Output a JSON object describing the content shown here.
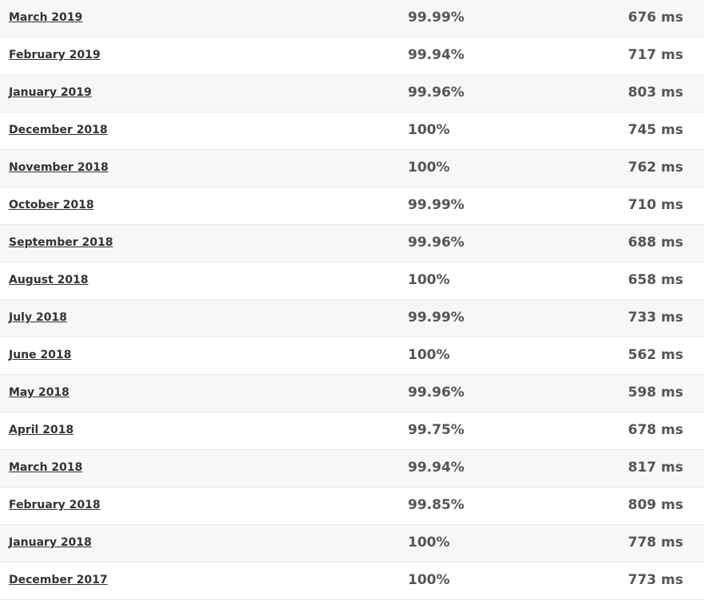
{
  "rows": [
    {
      "month": "March 2019",
      "uptime": "99.99%",
      "response": "676 ms"
    },
    {
      "month": "February 2019",
      "uptime": "99.94%",
      "response": "717 ms"
    },
    {
      "month": "January 2019",
      "uptime": "99.96%",
      "response": "803 ms"
    },
    {
      "month": "December 2018",
      "uptime": "100%",
      "response": "745 ms"
    },
    {
      "month": "November 2018",
      "uptime": "100%",
      "response": "762 ms"
    },
    {
      "month": "October 2018",
      "uptime": "99.99%",
      "response": "710 ms"
    },
    {
      "month": "September 2018",
      "uptime": "99.96%",
      "response": "688 ms"
    },
    {
      "month": "August 2018",
      "uptime": "100%",
      "response": "658 ms"
    },
    {
      "month": "July 2018",
      "uptime": "99.99%",
      "response": "733 ms"
    },
    {
      "month": "June 2018",
      "uptime": "100%",
      "response": "562 ms"
    },
    {
      "month": "May 2018",
      "uptime": "99.96%",
      "response": "598 ms"
    },
    {
      "month": "April 2018",
      "uptime": "99.75%",
      "response": "678 ms"
    },
    {
      "month": "March 2018",
      "uptime": "99.94%",
      "response": "817 ms"
    },
    {
      "month": "February 2018",
      "uptime": "99.85%",
      "response": "809 ms"
    },
    {
      "month": "January 2018",
      "uptime": "100%",
      "response": "778 ms"
    },
    {
      "month": "December 2017",
      "uptime": "100%",
      "response": "773 ms"
    }
  ]
}
